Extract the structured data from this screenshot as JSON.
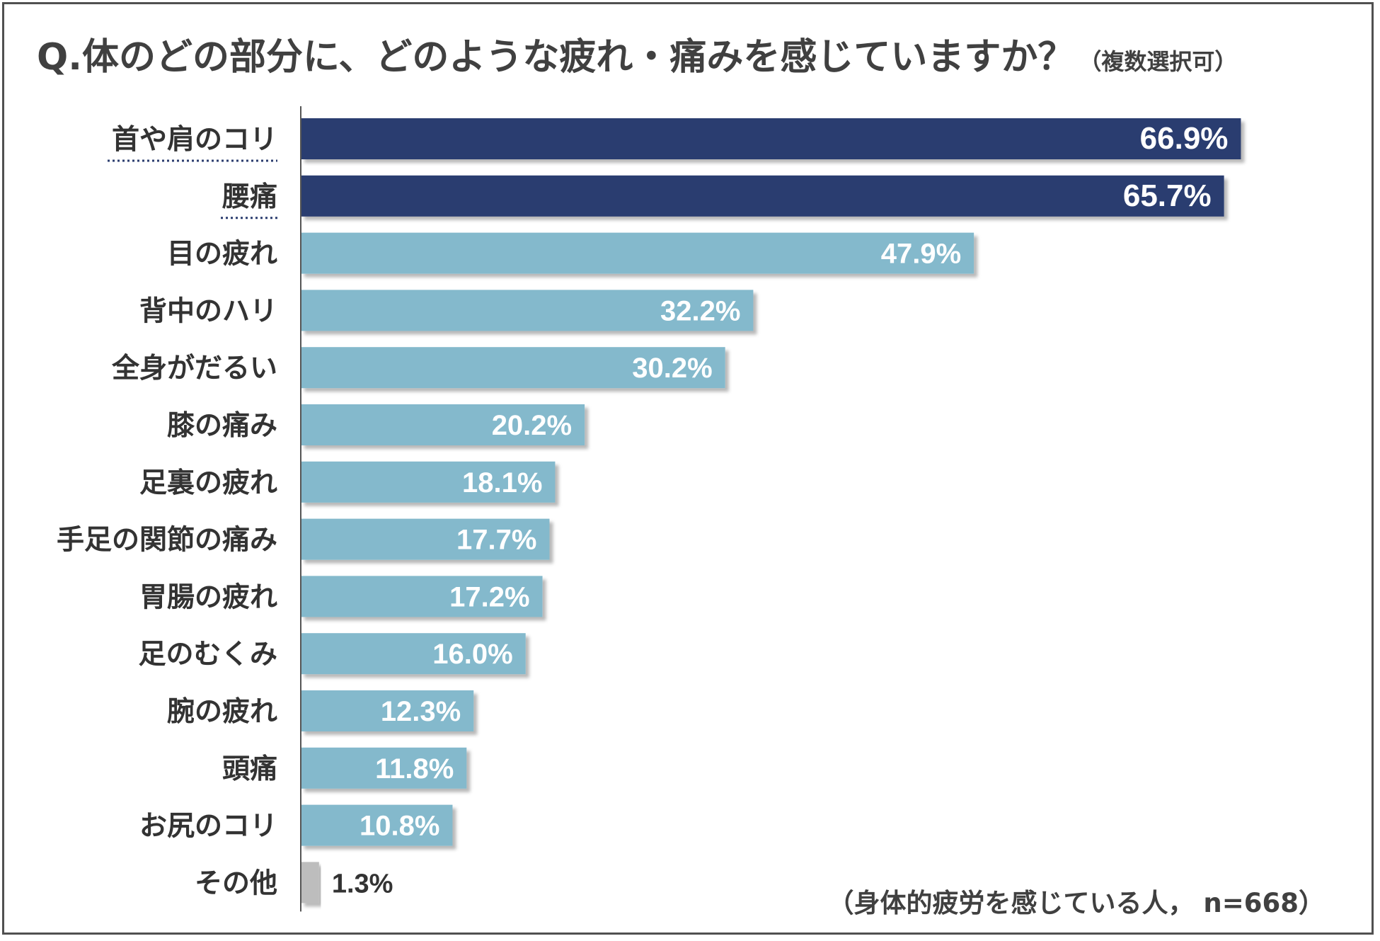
{
  "title": {
    "main": "Q.体のどの部分に、どのような疲れ・痛みを感じていますか？",
    "sub": "（複数選択可）"
  },
  "note": "（身体的疲労を感じている人， n=668）",
  "colors": {
    "highlight": "#2b3d6f",
    "normal": "#84b9cc",
    "other": "#bdbdbd",
    "label_dark": "#333333",
    "value_on_bar": "#ffffff"
  },
  "chart_data": {
    "type": "bar",
    "orientation": "horizontal",
    "title": "Q.体のどの部分に、どのような疲れ・痛みを感じていますか？",
    "categories": [
      "首や肩のコリ",
      "腰痛",
      "目の疲れ",
      "背中のハリ",
      "全身がだるい",
      "膝の痛み",
      "足裏の疲れ",
      "手足の関節の痛み",
      "胃腸の疲れ",
      "足のむくみ",
      "腕の疲れ",
      "頭痛",
      "お尻のコリ",
      "その他"
    ],
    "values": [
      66.9,
      65.7,
      47.9,
      32.2,
      30.2,
      20.2,
      18.1,
      17.7,
      17.2,
      16.0,
      12.3,
      11.8,
      10.8,
      1.3
    ],
    "value_labels": [
      "66.9%",
      "65.7%",
      "47.9%",
      "32.2%",
      "30.2%",
      "20.2%",
      "18.1%",
      "17.7%",
      "17.2%",
      "16.0%",
      "12.3%",
      "11.8%",
      "10.8%",
      "1.3%"
    ],
    "highlighted": [
      0,
      1
    ],
    "other_index": 13,
    "unit": "%",
    "xlim": [
      0,
      70
    ],
    "grid": false,
    "xlabel": "",
    "ylabel": ""
  }
}
